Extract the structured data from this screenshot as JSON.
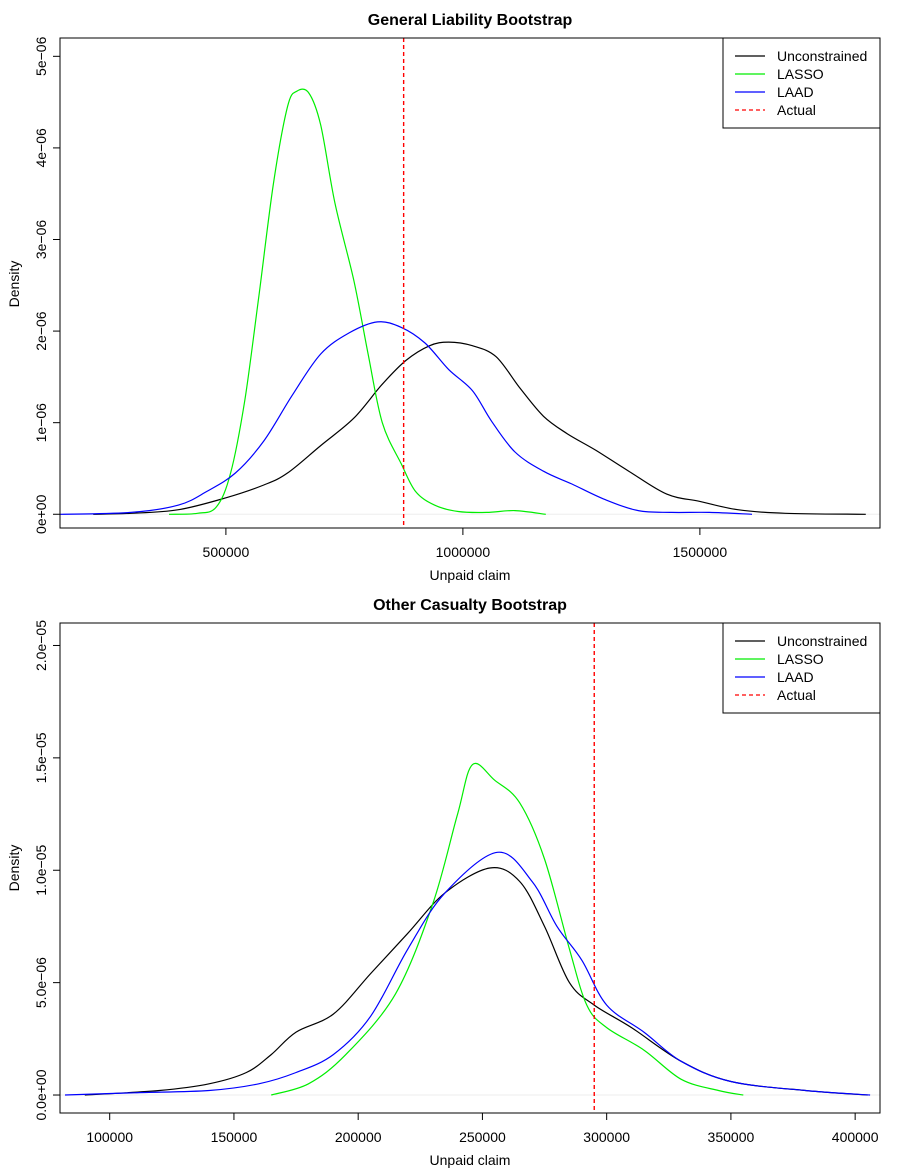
{
  "chart_data": [
    {
      "type": "line",
      "title": "General Liability Bootstrap",
      "xlabel": "Unpaid claim",
      "ylabel": "Density",
      "xlim": [
        150000,
        1880000
      ],
      "ylim": [
        -1.5e-07,
        5.2e-06
      ],
      "x_ticks": [
        500000,
        1000000,
        1500000
      ],
      "x_tick_labels": [
        "500000",
        "1000000",
        "1500000"
      ],
      "y_ticks": [
        0,
        1e-06,
        2e-06,
        3e-06,
        4e-06,
        5e-06
      ],
      "y_tick_labels": [
        "0e+00",
        "1e−06",
        "2e−06",
        "3e−06",
        "4e−06",
        "5e−06"
      ],
      "legend_position": "top-right",
      "vline": {
        "name": "Actual",
        "x": 875000,
        "color": "#ff0000"
      },
      "series": [
        {
          "name": "Unconstrained",
          "color": "#000000",
          "points": [
            [
              220000,
              0
            ],
            [
              300000,
              1e-08
            ],
            [
              400000,
              5e-08
            ],
            [
              500000,
              1.8e-07
            ],
            [
              580000,
              3.2e-07
            ],
            [
              630000,
              4.5e-07
            ],
            [
              700000,
              7.5e-07
            ],
            [
              770000,
              1.05e-06
            ],
            [
              830000,
              1.42e-06
            ],
            [
              880000,
              1.68e-06
            ],
            [
              930000,
              1.84e-06
            ],
            [
              970000,
              1.88e-06
            ],
            [
              1020000,
              1.84e-06
            ],
            [
              1070000,
              1.72e-06
            ],
            [
              1120000,
              1.38e-06
            ],
            [
              1170000,
              1.07e-06
            ],
            [
              1220000,
              8.8e-07
            ],
            [
              1280000,
              7e-07
            ],
            [
              1350000,
              4.7e-07
            ],
            [
              1430000,
              2.2e-07
            ],
            [
              1500000,
              1.4e-07
            ],
            [
              1580000,
              5e-08
            ],
            [
              1680000,
              1e-08
            ],
            [
              1850000,
              0
            ]
          ]
        },
        {
          "name": "LASSO",
          "color": "#00ee00",
          "points": [
            [
              380000,
              0
            ],
            [
              440000,
              1e-08
            ],
            [
              480000,
              8e-08
            ],
            [
              510000,
              4.5e-07
            ],
            [
              540000,
              1.25e-06
            ],
            [
              570000,
              2.4e-06
            ],
            [
              600000,
              3.6e-06
            ],
            [
              630000,
              4.45e-06
            ],
            [
              650000,
              4.62e-06
            ],
            [
              675000,
              4.6e-06
            ],
            [
              700000,
              4.25e-06
            ],
            [
              730000,
              3.4e-06
            ],
            [
              770000,
              2.55e-06
            ],
            [
              800000,
              1.75e-06
            ],
            [
              830000,
              1e-06
            ],
            [
              870000,
              5.5e-07
            ],
            [
              900000,
              2.5e-07
            ],
            [
              940000,
              1e-07
            ],
            [
              990000,
              3e-08
            ],
            [
              1050000,
              2e-08
            ],
            [
              1110000,
              4e-08
            ],
            [
              1175000,
              0
            ]
          ]
        },
        {
          "name": "LAAD",
          "color": "#0000ff",
          "points": [
            [
              150000,
              0
            ],
            [
              300000,
              2e-08
            ],
            [
              400000,
              1e-07
            ],
            [
              460000,
              2.5e-07
            ],
            [
              520000,
              4.5e-07
            ],
            [
              580000,
              8e-07
            ],
            [
              640000,
              1.3e-06
            ],
            [
              700000,
              1.75e-06
            ],
            [
              760000,
              1.98e-06
            ],
            [
              820000,
              2.1e-06
            ],
            [
              870000,
              2.04e-06
            ],
            [
              920000,
              1.87e-06
            ],
            [
              970000,
              1.58e-06
            ],
            [
              1020000,
              1.35e-06
            ],
            [
              1060000,
              1.02e-06
            ],
            [
              1110000,
              6.8e-07
            ],
            [
              1170000,
              4.7e-07
            ],
            [
              1230000,
              3.3e-07
            ],
            [
              1300000,
              1.6e-07
            ],
            [
              1370000,
              4e-08
            ],
            [
              1440000,
              2e-08
            ],
            [
              1520000,
              2e-08
            ],
            [
              1610000,
              0
            ]
          ]
        }
      ]
    },
    {
      "type": "line",
      "title": "Other Casualty Bootstrap",
      "xlabel": "Unpaid claim",
      "ylabel": "Density",
      "xlim": [
        80000,
        410000
      ],
      "ylim": [
        -8e-07,
        2.1e-05
      ],
      "x_ticks": [
        100000,
        150000,
        200000,
        250000,
        300000,
        350000,
        400000
      ],
      "x_tick_labels": [
        "100000",
        "150000",
        "200000",
        "250000",
        "300000",
        "350000",
        "400000"
      ],
      "y_ticks": [
        0,
        5e-06,
        1e-05,
        1.5e-05,
        2e-05
      ],
      "y_tick_labels": [
        "0.0e+00",
        "5.0e−06",
        "1.0e−05",
        "1.5e−05",
        "2.0e−05"
      ],
      "legend_position": "top-right",
      "vline": {
        "name": "Actual",
        "x": 295000,
        "color": "#ff0000"
      },
      "series": [
        {
          "name": "Unconstrained",
          "color": "#000000",
          "points": [
            [
              90000,
              0
            ],
            [
              120000,
              2e-07
            ],
            [
              140000,
              5e-07
            ],
            [
              155000,
              1e-06
            ],
            [
              165000,
              1.8e-06
            ],
            [
              175000,
              2.8e-06
            ],
            [
              190000,
              3.6e-06
            ],
            [
              205000,
              5.4e-06
            ],
            [
              220000,
              7.2e-06
            ],
            [
              235000,
              9e-06
            ],
            [
              253000,
              1.01e-05
            ],
            [
              265000,
              9.5e-06
            ],
            [
              275000,
              7.5e-06
            ],
            [
              285000,
              5e-06
            ],
            [
              295000,
              4e-06
            ],
            [
              310000,
              3e-06
            ],
            [
              330000,
              1.5e-06
            ],
            [
              350000,
              6e-07
            ],
            [
              380000,
              2e-07
            ],
            [
              405000,
              0
            ]
          ]
        },
        {
          "name": "LASSO",
          "color": "#00ee00",
          "points": [
            [
              165000,
              0
            ],
            [
              180000,
              5e-07
            ],
            [
              195000,
              1.8e-06
            ],
            [
              215000,
              4.5e-06
            ],
            [
              230000,
              8.5e-06
            ],
            [
              240000,
              1.25e-05
            ],
            [
              246000,
              1.47e-05
            ],
            [
              255000,
              1.4e-05
            ],
            [
              265000,
              1.3e-05
            ],
            [
              275000,
              1.05e-05
            ],
            [
              285000,
              6.5e-06
            ],
            [
              292000,
              4e-06
            ],
            [
              300000,
              3e-06
            ],
            [
              315000,
              2e-06
            ],
            [
              330000,
              7e-07
            ],
            [
              345000,
              2e-07
            ],
            [
              355000,
              0
            ]
          ]
        },
        {
          "name": "LAAD",
          "color": "#0000ff",
          "points": [
            [
              82000,
              0
            ],
            [
              110000,
              1e-07
            ],
            [
              140000,
              2e-07
            ],
            [
              160000,
              5e-07
            ],
            [
              175000,
              1e-06
            ],
            [
              190000,
              1.8e-06
            ],
            [
              205000,
              3.5e-06
            ],
            [
              220000,
              6.5e-06
            ],
            [
              235000,
              9e-06
            ],
            [
              256000,
              1.08e-05
            ],
            [
              270000,
              9.5e-06
            ],
            [
              280000,
              7.5e-06
            ],
            [
              290000,
              6e-06
            ],
            [
              300000,
              4e-06
            ],
            [
              315000,
              2.8e-06
            ],
            [
              330000,
              1.5e-06
            ],
            [
              350000,
              6e-07
            ],
            [
              380000,
              2e-07
            ],
            [
              406000,
              0
            ]
          ]
        }
      ]
    }
  ]
}
